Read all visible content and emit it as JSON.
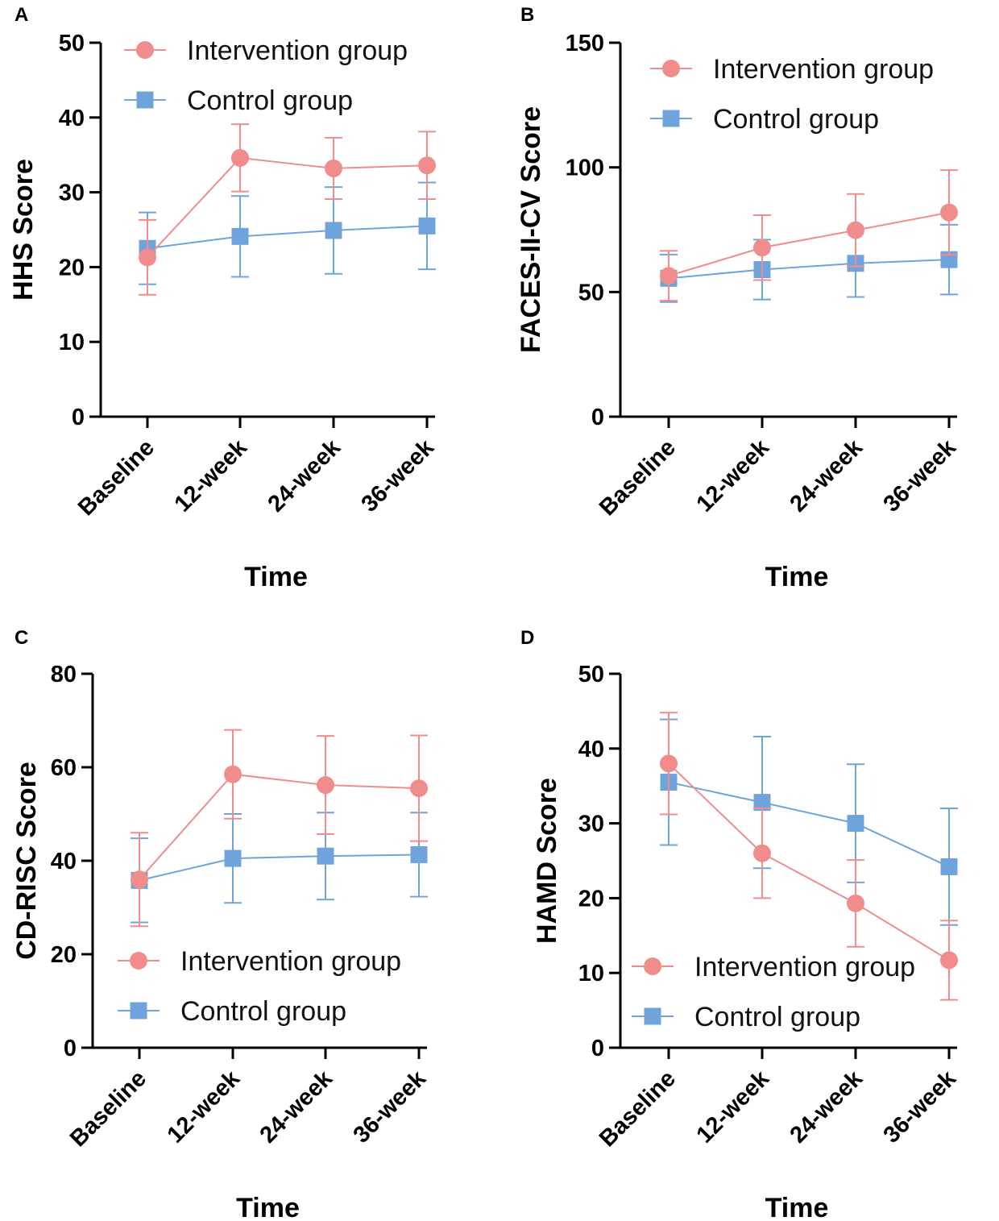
{
  "colors": {
    "intervention": "#F08C8C",
    "control": "#6EA4DB",
    "axis": "#000000"
  },
  "chart_data": [
    {
      "id": "A",
      "panel_label": "A",
      "type": "line",
      "ylabel": "HHS Score",
      "xlabel": "Time",
      "categories": [
        "Baseline",
        "12-week",
        "24-week",
        "36-week"
      ],
      "ylim": [
        0,
        50
      ],
      "yticks": [
        0,
        10,
        20,
        30,
        40,
        50
      ],
      "legend_position": "top-left",
      "series": [
        {
          "name": "Intervention group",
          "marker": "circle",
          "values": [
            21.3,
            34.6,
            33.2,
            33.6
          ],
          "errors": [
            5.0,
            4.5,
            4.1,
            4.5
          ]
        },
        {
          "name": "Control group",
          "marker": "square",
          "values": [
            22.5,
            24.1,
            24.9,
            25.5
          ],
          "errors": [
            4.8,
            5.4,
            5.8,
            5.8
          ]
        }
      ]
    },
    {
      "id": "B",
      "panel_label": "B",
      "type": "line",
      "ylabel": "FACES-II-CV Score",
      "xlabel": "Time",
      "categories": [
        "Baseline",
        "12-week",
        "24-week",
        "36-week"
      ],
      "ylim": [
        0,
        150
      ],
      "yticks": [
        0,
        50,
        100,
        150
      ],
      "legend_position": "top-left",
      "series": [
        {
          "name": "Intervention group",
          "marker": "circle",
          "values": [
            56.5,
            67.8,
            74.8,
            81.9
          ],
          "errors": [
            10.0,
            13.0,
            14.5,
            17.0
          ]
        },
        {
          "name": "Control group",
          "marker": "square",
          "values": [
            55.5,
            59.0,
            61.5,
            63.0
          ],
          "errors": [
            9.5,
            12.0,
            13.5,
            14.0
          ]
        }
      ]
    },
    {
      "id": "C",
      "panel_label": "C",
      "type": "line",
      "ylabel": "CD-RISC Score",
      "xlabel": "Time",
      "categories": [
        "Baseline",
        "12-week",
        "24-week",
        "36-week"
      ],
      "ylim": [
        0,
        80
      ],
      "yticks": [
        0,
        20,
        40,
        60,
        80
      ],
      "legend_position": "bottom-left",
      "series": [
        {
          "name": "Intervention group",
          "marker": "circle",
          "values": [
            36.0,
            58.5,
            56.2,
            55.5
          ],
          "errors": [
            10.0,
            9.5,
            10.5,
            11.3
          ]
        },
        {
          "name": "Control group",
          "marker": "square",
          "values": [
            35.8,
            40.5,
            41.0,
            41.3
          ],
          "errors": [
            9.0,
            9.5,
            9.3,
            9.0
          ]
        }
      ]
    },
    {
      "id": "D",
      "panel_label": "D",
      "type": "line",
      "ylabel": "HAMD Score",
      "xlabel": "Time",
      "categories": [
        "Baseline",
        "12-week",
        "24-week",
        "36-week"
      ],
      "ylim": [
        0,
        50
      ],
      "yticks": [
        0,
        10,
        20,
        30,
        40,
        50
      ],
      "legend_position": "bottom-left",
      "series": [
        {
          "name": "Intervention group",
          "marker": "circle",
          "values": [
            38.0,
            26.0,
            19.3,
            11.7
          ],
          "errors": [
            6.8,
            6.0,
            5.8,
            5.3
          ]
        },
        {
          "name": "Control group",
          "marker": "square",
          "values": [
            35.5,
            32.8,
            30.0,
            24.2
          ],
          "errors": [
            8.4,
            8.8,
            7.9,
            7.8
          ]
        }
      ]
    }
  ]
}
